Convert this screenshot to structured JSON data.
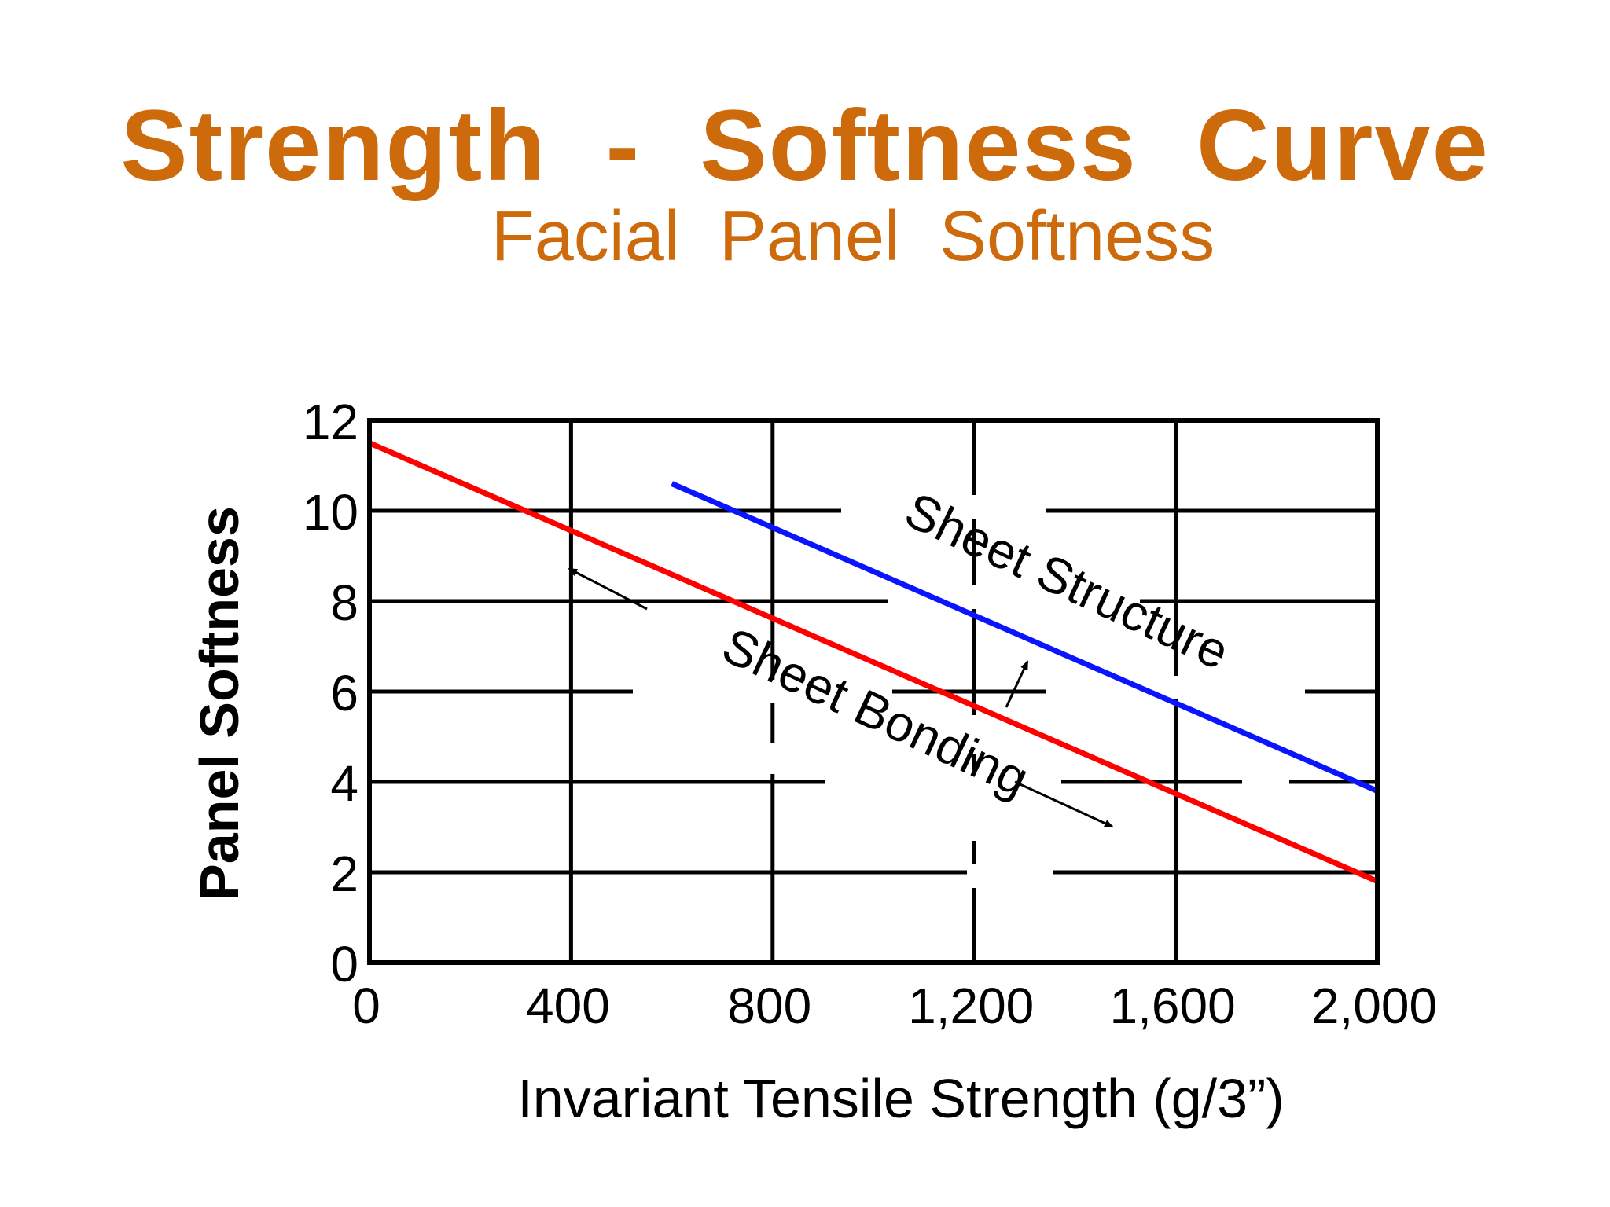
{
  "slide": {
    "title": "Strength  -  Softness  Curve",
    "subtitle": "Facial  Panel  Softness"
  },
  "chart_data": {
    "type": "line",
    "title": "Strength  -  Softness  Curve",
    "subtitle": "Facial  Panel  Softness",
    "xlabel": "Invariant  Tensile  Strength (g/3”)",
    "ylabel": "Panel Softness",
    "xlim": [
      0,
      2000
    ],
    "ylim": [
      0,
      12
    ],
    "x_ticks": [
      0,
      400,
      800,
      1200,
      1600,
      2000
    ],
    "x_tick_labels": [
      "0",
      "400",
      "800",
      "1,200",
      "1,600",
      "2,000"
    ],
    "y_ticks": [
      0,
      2,
      4,
      6,
      8,
      10,
      12
    ],
    "y_tick_labels": [
      "0",
      "2",
      "4",
      "6",
      "8",
      "10",
      "12"
    ],
    "grid": true,
    "series": [
      {
        "name": "Sheet Bonding",
        "color": "#ff0000",
        "x": [
          0,
          2000
        ],
        "y": [
          11.5,
          1.8
        ]
      },
      {
        "name": "Sheet Structure",
        "color": "#0a14ff",
        "x": [
          600,
          2000
        ],
        "y": [
          10.6,
          3.8
        ]
      }
    ],
    "annotations": [
      {
        "text": "Sheet Structure",
        "x": 1370,
        "y": 8.1,
        "angle_deg": 25
      },
      {
        "text": "Sheet Bonding",
        "x": 990,
        "y": 5.2,
        "angle_deg": 25
      }
    ]
  }
}
